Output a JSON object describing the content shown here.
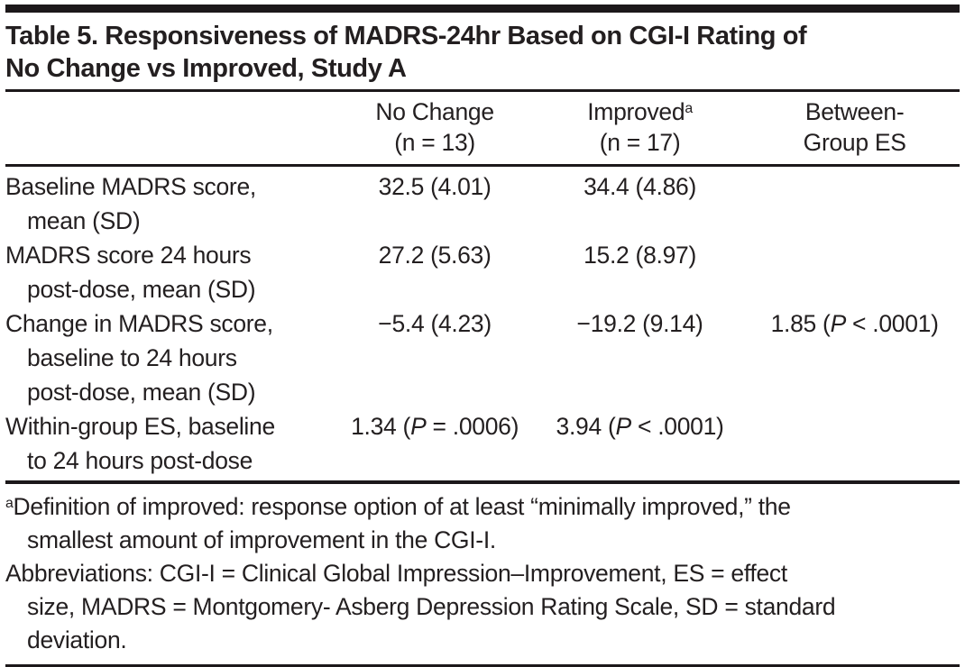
{
  "colors": {
    "ink": "#231f20",
    "rule": "#1c181a",
    "background": "#ffffff"
  },
  "title": "Table 5. Responsiveness of MADRS-24hr Based on CGI-I Rating of\nNo Change vs Improved, Study A",
  "header": {
    "col1": "",
    "col2": {
      "line1": "No Change",
      "line2": "(n = 13)"
    },
    "col3": {
      "line1": "Improved",
      "sup": "a",
      "line2": "(n = 17)"
    },
    "col4": {
      "line1": "Between-",
      "line2": "Group ES"
    }
  },
  "rows": [
    {
      "label": "Baseline MADRS score,\nmean (SD)",
      "c2": {
        "pre": "32.5 (4.01)",
        "p": "",
        "post": ""
      },
      "c3": {
        "pre": "34.4 (4.86)",
        "p": "",
        "post": ""
      },
      "c4": {
        "pre": "",
        "p": "",
        "post": ""
      }
    },
    {
      "label": "MADRS score 24 hours\npost-dose, mean (SD)",
      "c2": {
        "pre": "27.2 (5.63)",
        "p": "",
        "post": ""
      },
      "c3": {
        "pre": "15.2 (8.97)",
        "p": "",
        "post": ""
      },
      "c4": {
        "pre": "",
        "p": "",
        "post": ""
      }
    },
    {
      "label": "Change in MADRS score,\nbaseline to 24 hours\npost-dose, mean (SD)",
      "c2": {
        "pre": "−5.4 (4.23)",
        "p": "",
        "post": ""
      },
      "c3": {
        "pre": "−19.2 (9.14)",
        "p": "",
        "post": ""
      },
      "c4": {
        "pre": "1.85 (",
        "p": "P",
        "post": " < .0001)"
      }
    },
    {
      "label": "Within-group ES, baseline\nto 24 hours post-dose",
      "c2": {
        "pre": "1.34 (",
        "p": "P",
        "post": " = .0006)"
      },
      "c3": {
        "pre": "3.94 (",
        "p": "P",
        "post": " < .0001)"
      },
      "c4": {
        "pre": "",
        "p": "",
        "post": ""
      }
    }
  ],
  "footnotes": {
    "fn1": {
      "sup": "a",
      "text": "Definition of improved: response option of at least “minimally improved,” the\nsmallest amount of improvement in the CGI-I."
    },
    "fn2": {
      "text": "Abbreviations: CGI-I = Clinical Global Impression–Improvement, ES = effect\nsize, MADRS = Montgomery- Asberg Depression Rating Scale, SD = standard\ndeviation."
    }
  }
}
